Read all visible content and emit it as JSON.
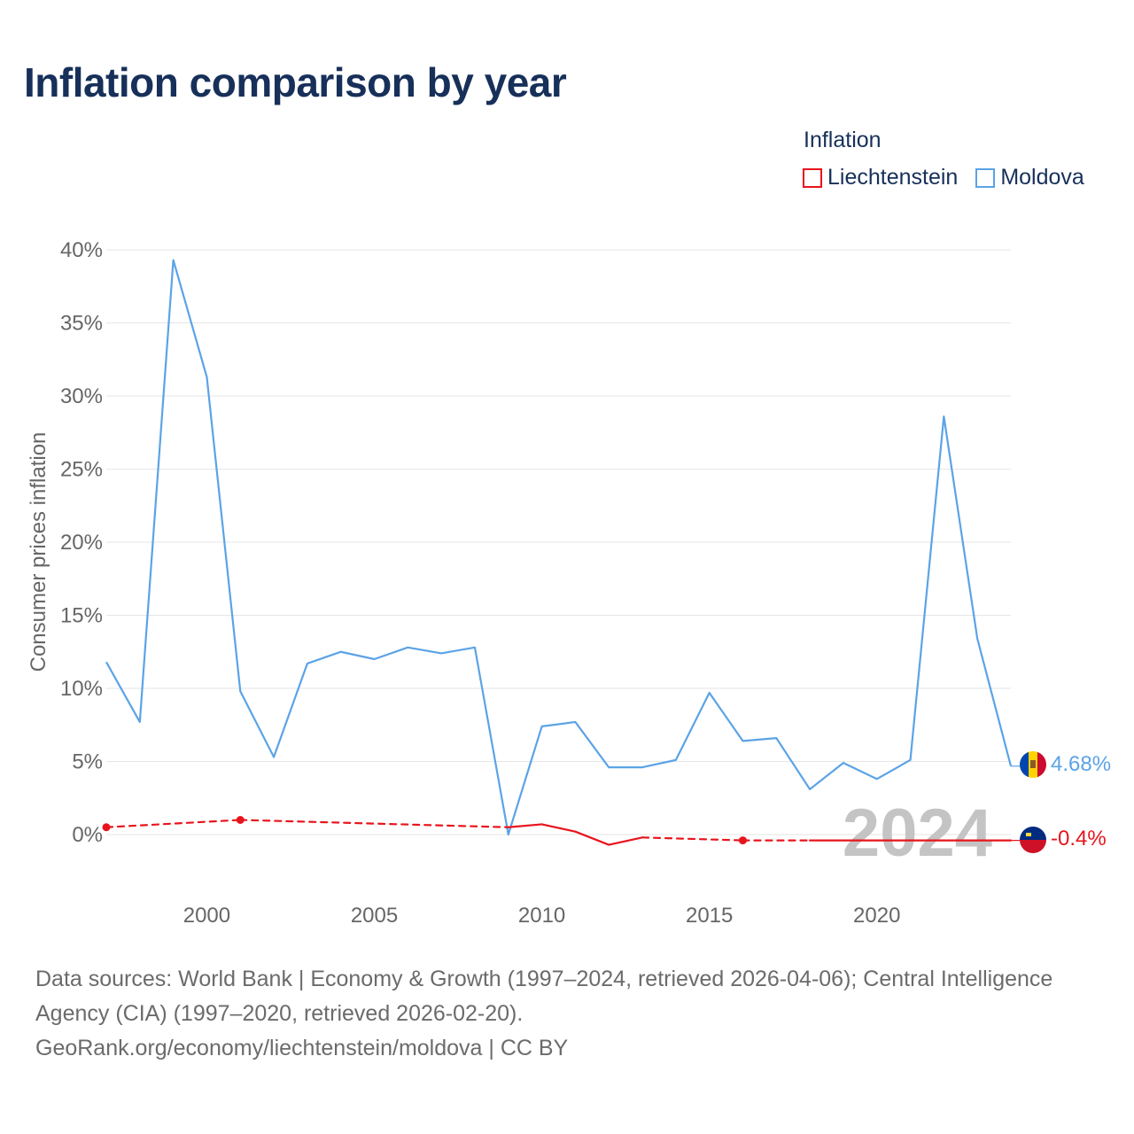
{
  "title": "Inflation comparison by year",
  "legend": {
    "title": "Inflation",
    "items": [
      {
        "label": "Liechtenstein",
        "color": "#e8141c"
      },
      {
        "label": "Moldova",
        "color": "#5ba3e6"
      }
    ]
  },
  "chart_data": {
    "type": "line",
    "title": "Inflation comparison by year",
    "xlabel": "",
    "ylabel": "Consumer prices inflation",
    "xlim": [
      1997,
      2024
    ],
    "ylim": [
      -4,
      42
    ],
    "y_ticks": [
      0,
      5,
      10,
      15,
      20,
      25,
      30,
      35,
      40
    ],
    "y_tick_labels": [
      "0%",
      "5%",
      "10%",
      "15%",
      "20%",
      "25%",
      "30%",
      "35%",
      "40%"
    ],
    "x_ticks": [
      2000,
      2005,
      2010,
      2015,
      2020
    ],
    "x_tick_labels": [
      "2000",
      "2005",
      "2010",
      "2015",
      "2020"
    ],
    "year_label": "2024",
    "grid": true,
    "series": [
      {
        "name": "Moldova",
        "color": "#5ba3e6",
        "end_label": "4.68%",
        "x": [
          1997,
          1998,
          1999,
          2000,
          2001,
          2002,
          2003,
          2004,
          2005,
          2006,
          2007,
          2008,
          2009,
          2010,
          2011,
          2012,
          2013,
          2014,
          2015,
          2016,
          2017,
          2018,
          2019,
          2020,
          2021,
          2022,
          2023,
          2024
        ],
        "values": [
          11.8,
          7.7,
          39.3,
          31.3,
          9.8,
          5.3,
          11.7,
          12.5,
          12.0,
          12.8,
          12.4,
          12.8,
          0.0,
          7.4,
          7.7,
          4.6,
          4.6,
          5.1,
          9.7,
          6.4,
          6.6,
          3.1,
          4.9,
          3.8,
          5.1,
          28.6,
          13.4,
          4.68
        ]
      },
      {
        "name": "Liechtenstein",
        "color": "#e8141c",
        "end_label": "-0.4%",
        "x": [
          1997,
          2001,
          2009,
          2010,
          2011,
          2012,
          2013,
          2016,
          2018,
          2020,
          2024
        ],
        "values": [
          0.5,
          1.0,
          0.5,
          0.7,
          0.2,
          -0.7,
          -0.2,
          -0.4,
          -0.4,
          -0.4,
          -0.4
        ],
        "markers": [
          1997,
          2001,
          2016
        ],
        "dashed_segments": [
          [
            1997,
            2009
          ],
          [
            2013,
            2018
          ]
        ]
      }
    ]
  },
  "footer": {
    "line1": "Data sources: World Bank | Economy & Growth (1997–2024, retrieved 2026-04-06); Central Intelligence",
    "line2": "Agency (CIA) (1997–2020, retrieved 2026-02-20).",
    "line3": "GeoRank.org/economy/liechtenstein/moldova | CC BY"
  }
}
